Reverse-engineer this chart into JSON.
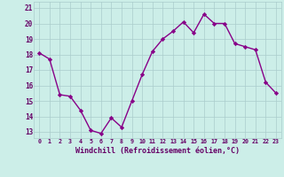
{
  "x": [
    0,
    1,
    2,
    3,
    4,
    5,
    6,
    7,
    8,
    9,
    10,
    11,
    12,
    13,
    14,
    15,
    16,
    17,
    18,
    19,
    20,
    21,
    22,
    23
  ],
  "y": [
    18.1,
    17.7,
    15.4,
    15.3,
    14.4,
    13.1,
    12.9,
    13.9,
    13.3,
    15.0,
    16.7,
    18.2,
    19.0,
    19.5,
    20.1,
    19.4,
    20.6,
    20.0,
    20.0,
    18.7,
    18.5,
    18.3,
    16.2,
    15.5
  ],
  "line_color": "#880088",
  "marker": "D",
  "markersize": 2.2,
  "linewidth": 1.0,
  "bg_color": "#cceee8",
  "grid_color": "#aacccc",
  "xlabel": "Windchill (Refroidissement éolien,°C)",
  "xlabel_fontsize": 6.0,
  "yticks": [
    13,
    14,
    15,
    16,
    17,
    18,
    19,
    20,
    21
  ],
  "xtick_fontsize": 4.8,
  "ytick_fontsize": 5.5,
  "ylim": [
    12.6,
    21.4
  ],
  "xlim": [
    -0.5,
    23.5
  ],
  "label_color": "#660066"
}
